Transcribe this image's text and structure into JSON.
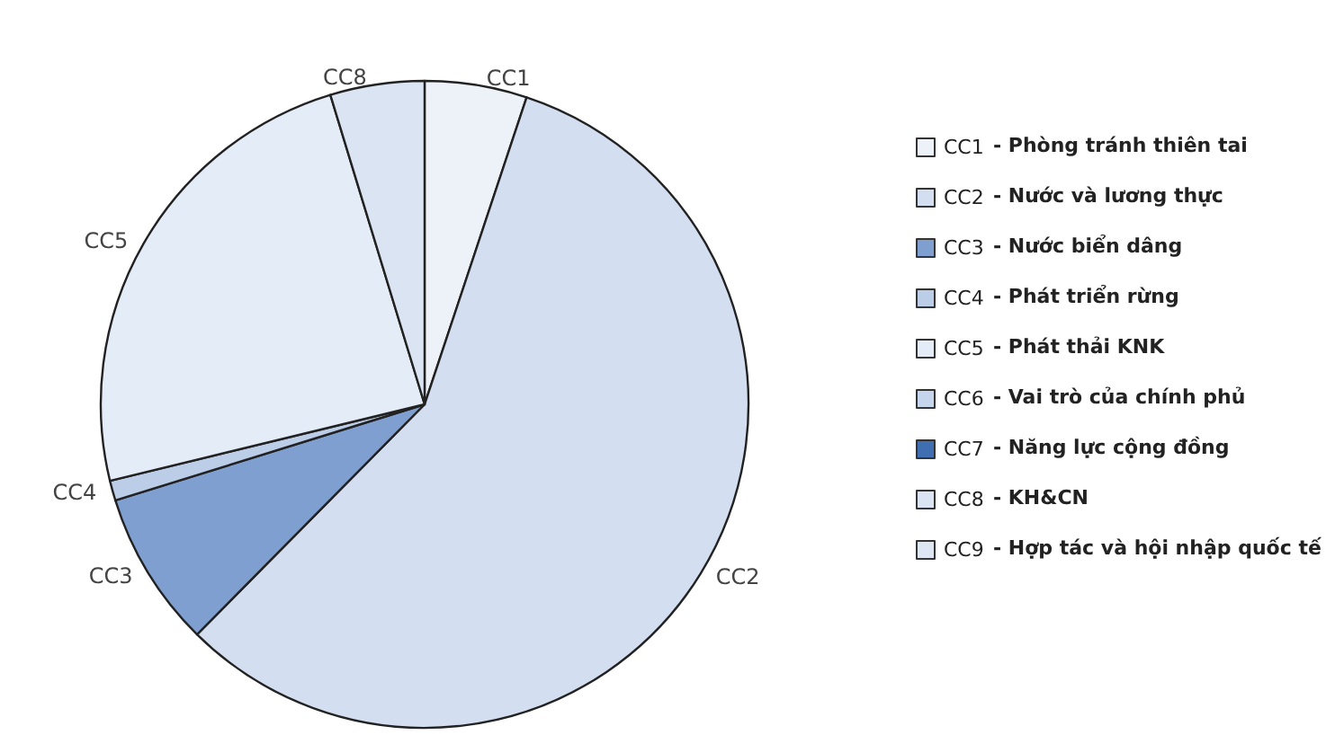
{
  "chart_data": {
    "type": "pie",
    "categories": [
      "CC1",
      "CC2",
      "CC3",
      "CC4",
      "CC5",
      "CC6",
      "CC7",
      "CC8",
      "CC9"
    ],
    "values": [
      5.1,
      57.3,
      7.8,
      1.0,
      24.1,
      0,
      0,
      4.7,
      0
    ],
    "colors": [
      "#edf2f9",
      "#d3dff0",
      "#7f9fd1",
      "#bccde8",
      "#e4ecf7",
      "#c5d5ec",
      "#3f6fb0",
      "#dbe4f2",
      "#dde7f4"
    ],
    "annotations": [
      "- Phòng tránh thiên tai",
      "- Nước và lương thực",
      "- Nước biển dâng",
      "- Phát triển rừng",
      "- Phát thải KNK",
      "- Vai trò của chính phủ",
      "- Năng lực cộng đồng",
      "- KH&CN",
      "- Hợp tác và hội nhập quốc tế"
    ],
    "legend": "right"
  }
}
